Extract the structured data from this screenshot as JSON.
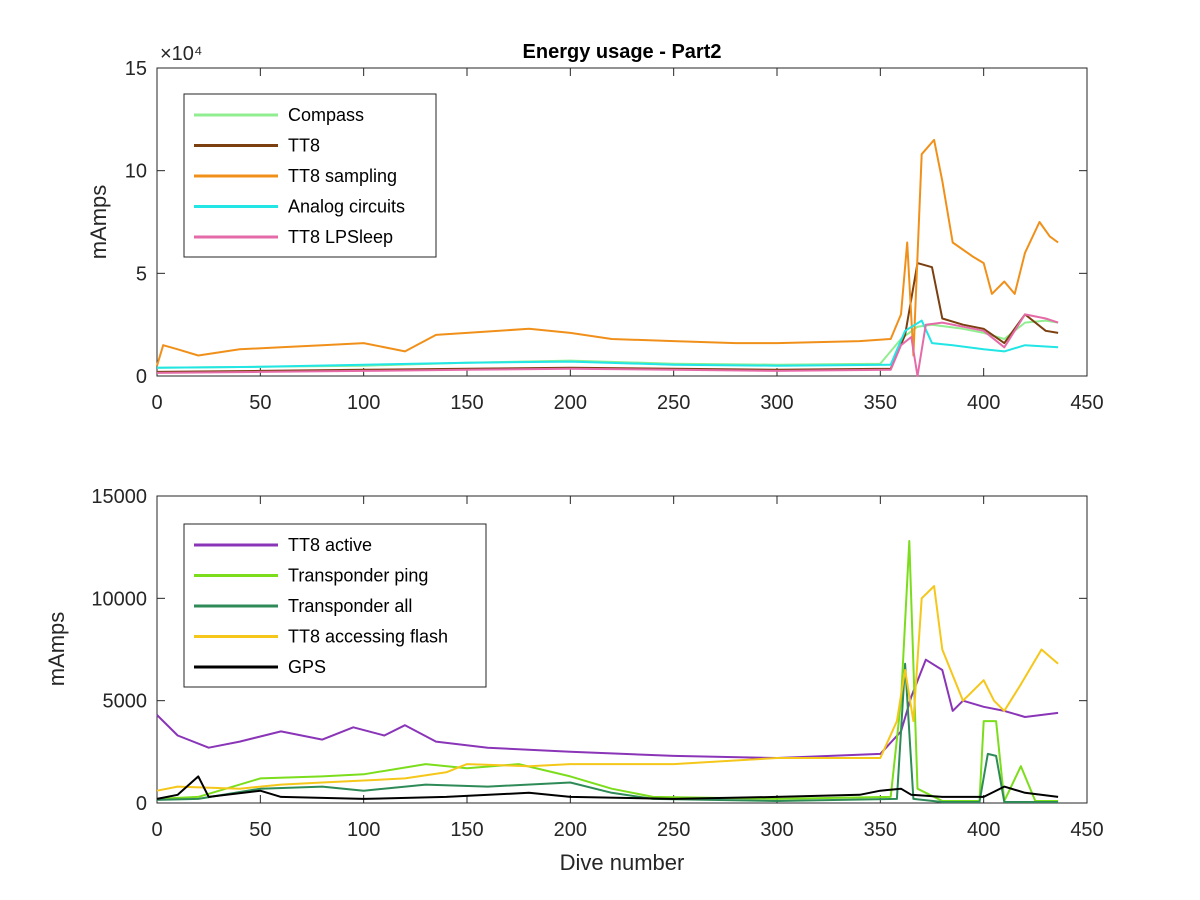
{
  "chart_data": [
    {
      "type": "line",
      "title": "Energy usage - Part2",
      "xlabel": "",
      "ylabel": "mAmps",
      "exponent_label": "×10⁴",
      "xlim": [
        0,
        450
      ],
      "ylim": [
        0,
        15
      ],
      "xticks": [
        "0",
        "50",
        "100",
        "150",
        "200",
        "250",
        "300",
        "350",
        "400",
        "450"
      ],
      "yticks": [
        "0",
        "5",
        "10",
        "15"
      ],
      "legend_position": "top-left",
      "series": [
        {
          "name": "Compass",
          "color": "#90EE90",
          "points": [
            [
              0,
              0.4
            ],
            [
              50,
              0.45
            ],
            [
              100,
              0.5
            ],
            [
              150,
              0.65
            ],
            [
              200,
              0.75
            ],
            [
              250,
              0.6
            ],
            [
              300,
              0.55
            ],
            [
              350,
              0.6
            ],
            [
              360,
              1.8
            ],
            [
              368,
              2.4
            ],
            [
              375,
              2.5
            ],
            [
              390,
              2.3
            ],
            [
              400,
              2.1
            ],
            [
              410,
              1.8
            ],
            [
              420,
              2.6
            ],
            [
              430,
              2.7
            ],
            [
              436,
              2.6
            ]
          ]
        },
        {
          "name": "TT8",
          "color": "#7B3F10",
          "points": [
            [
              0,
              0.2
            ],
            [
              50,
              0.25
            ],
            [
              100,
              0.3
            ],
            [
              150,
              0.35
            ],
            [
              200,
              0.4
            ],
            [
              250,
              0.35
            ],
            [
              300,
              0.3
            ],
            [
              355,
              0.35
            ],
            [
              362,
              2.0
            ],
            [
              368,
              5.5
            ],
            [
              375,
              5.3
            ],
            [
              380,
              2.8
            ],
            [
              390,
              2.5
            ],
            [
              400,
              2.3
            ],
            [
              410,
              1.6
            ],
            [
              420,
              3.0
            ],
            [
              430,
              2.2
            ],
            [
              436,
              2.1
            ]
          ]
        },
        {
          "name": "TT8 sampling",
          "color": "#F0901A",
          "points": [
            [
              0,
              0.5
            ],
            [
              3,
              1.5
            ],
            [
              10,
              1.3
            ],
            [
              20,
              1.0
            ],
            [
              40,
              1.3
            ],
            [
              60,
              1.4
            ],
            [
              80,
              1.5
            ],
            [
              100,
              1.6
            ],
            [
              120,
              1.2
            ],
            [
              135,
              2.0
            ],
            [
              150,
              2.1
            ],
            [
              180,
              2.3
            ],
            [
              200,
              2.1
            ],
            [
              220,
              1.8
            ],
            [
              250,
              1.7
            ],
            [
              280,
              1.6
            ],
            [
              300,
              1.6
            ],
            [
              340,
              1.7
            ],
            [
              355,
              1.8
            ],
            [
              360,
              3.0
            ],
            [
              363,
              6.5
            ],
            [
              366,
              1.0
            ],
            [
              370,
              10.8
            ],
            [
              376,
              11.5
            ],
            [
              380,
              9.5
            ],
            [
              385,
              6.5
            ],
            [
              395,
              5.8
            ],
            [
              400,
              5.5
            ],
            [
              404,
              4.0
            ],
            [
              410,
              4.6
            ],
            [
              415,
              4.0
            ],
            [
              420,
              6.0
            ],
            [
              427,
              7.5
            ],
            [
              432,
              6.8
            ],
            [
              436,
              6.5
            ]
          ]
        },
        {
          "name": "Analog circuits",
          "color": "#22E5E5",
          "points": [
            [
              0,
              0.4
            ],
            [
              50,
              0.45
            ],
            [
              100,
              0.55
            ],
            [
              150,
              0.65
            ],
            [
              200,
              0.7
            ],
            [
              250,
              0.55
            ],
            [
              300,
              0.5
            ],
            [
              355,
              0.55
            ],
            [
              362,
              2.2
            ],
            [
              370,
              2.7
            ],
            [
              375,
              1.6
            ],
            [
              385,
              1.5
            ],
            [
              400,
              1.3
            ],
            [
              410,
              1.2
            ],
            [
              420,
              1.5
            ],
            [
              436,
              1.4
            ]
          ]
        },
        {
          "name": "TT8 LPSleep",
          "color": "#E56AA8",
          "points": [
            [
              0,
              0.15
            ],
            [
              50,
              0.2
            ],
            [
              100,
              0.25
            ],
            [
              150,
              0.3
            ],
            [
              200,
              0.35
            ],
            [
              250,
              0.3
            ],
            [
              300,
              0.25
            ],
            [
              355,
              0.3
            ],
            [
              360,
              1.5
            ],
            [
              365,
              1.9
            ],
            [
              368,
              0.0
            ],
            [
              372,
              2.5
            ],
            [
              380,
              2.6
            ],
            [
              390,
              2.4
            ],
            [
              400,
              2.2
            ],
            [
              410,
              1.4
            ],
            [
              420,
              3.0
            ],
            [
              430,
              2.8
            ],
            [
              436,
              2.6
            ]
          ]
        }
      ]
    },
    {
      "type": "line",
      "title": "",
      "xlabel": "Dive number",
      "ylabel": "mAmps",
      "xlim": [
        0,
        450
      ],
      "ylim": [
        0,
        15000
      ],
      "xticks": [
        "0",
        "50",
        "100",
        "150",
        "200",
        "250",
        "300",
        "350",
        "400",
        "450"
      ],
      "yticks": [
        "0",
        "5000",
        "10000",
        "15000"
      ],
      "legend_position": "top-left",
      "series": [
        {
          "name": "TT8 active",
          "color": "#8A35B8",
          "points": [
            [
              0,
              4300
            ],
            [
              10,
              3300
            ],
            [
              25,
              2700
            ],
            [
              40,
              3000
            ],
            [
              60,
              3500
            ],
            [
              80,
              3100
            ],
            [
              95,
              3700
            ],
            [
              110,
              3300
            ],
            [
              120,
              3800
            ],
            [
              135,
              3000
            ],
            [
              160,
              2700
            ],
            [
              200,
              2500
            ],
            [
              250,
              2300
            ],
            [
              300,
              2200
            ],
            [
              350,
              2400
            ],
            [
              360,
              3500
            ],
            [
              365,
              5200
            ],
            [
              372,
              7000
            ],
            [
              380,
              6500
            ],
            [
              385,
              4500
            ],
            [
              390,
              5000
            ],
            [
              400,
              4700
            ],
            [
              410,
              4500
            ],
            [
              420,
              4200
            ],
            [
              436,
              4400
            ]
          ]
        },
        {
          "name": "Transponder ping",
          "color": "#7CDD1C",
          "points": [
            [
              0,
              200
            ],
            [
              20,
              300
            ],
            [
              50,
              1200
            ],
            [
              80,
              1300
            ],
            [
              100,
              1400
            ],
            [
              130,
              1900
            ],
            [
              150,
              1700
            ],
            [
              175,
              1900
            ],
            [
              200,
              1300
            ],
            [
              220,
              700
            ],
            [
              240,
              300
            ],
            [
              300,
              200
            ],
            [
              355,
              300
            ],
            [
              360,
              5000
            ],
            [
              364,
              12800
            ],
            [
              368,
              700
            ],
            [
              380,
              100
            ],
            [
              398,
              100
            ],
            [
              400,
              4000
            ],
            [
              406,
              4000
            ],
            [
              410,
              100
            ],
            [
              418,
              1800
            ],
            [
              425,
              100
            ],
            [
              436,
              100
            ]
          ]
        },
        {
          "name": "Transponder all",
          "color": "#2E8B57",
          "points": [
            [
              0,
              150
            ],
            [
              20,
              200
            ],
            [
              50,
              700
            ],
            [
              80,
              800
            ],
            [
              100,
              600
            ],
            [
              130,
              900
            ],
            [
              160,
              800
            ],
            [
              200,
              1000
            ],
            [
              220,
              500
            ],
            [
              240,
              200
            ],
            [
              300,
              100
            ],
            [
              358,
              200
            ],
            [
              362,
              6800
            ],
            [
              366,
              200
            ],
            [
              380,
              50
            ],
            [
              398,
              50
            ],
            [
              402,
              2400
            ],
            [
              406,
              2300
            ],
            [
              410,
              50
            ],
            [
              436,
              50
            ]
          ]
        },
        {
          "name": "TT8 accessing flash",
          "color": "#F5C71A",
          "points": [
            [
              0,
              600
            ],
            [
              10,
              800
            ],
            [
              40,
              700
            ],
            [
              60,
              900
            ],
            [
              80,
              1000
            ],
            [
              100,
              1100
            ],
            [
              120,
              1200
            ],
            [
              140,
              1500
            ],
            [
              150,
              1900
            ],
            [
              180,
              1800
            ],
            [
              200,
              1900
            ],
            [
              250,
              1900
            ],
            [
              300,
              2200
            ],
            [
              350,
              2200
            ],
            [
              358,
              4000
            ],
            [
              362,
              6500
            ],
            [
              366,
              4000
            ],
            [
              370,
              10000
            ],
            [
              376,
              10600
            ],
            [
              380,
              7500
            ],
            [
              390,
              5000
            ],
            [
              400,
              6000
            ],
            [
              405,
              5000
            ],
            [
              410,
              4500
            ],
            [
              418,
              5800
            ],
            [
              428,
              7500
            ],
            [
              436,
              6800
            ]
          ]
        },
        {
          "name": "GPS",
          "color": "#000000",
          "points": [
            [
              0,
              200
            ],
            [
              10,
              400
            ],
            [
              20,
              1300
            ],
            [
              25,
              300
            ],
            [
              50,
              600
            ],
            [
              60,
              300
            ],
            [
              100,
              200
            ],
            [
              140,
              300
            ],
            [
              180,
              500
            ],
            [
              200,
              300
            ],
            [
              250,
              200
            ],
            [
              300,
              300
            ],
            [
              340,
              400
            ],
            [
              350,
              600
            ],
            [
              360,
              700
            ],
            [
              365,
              400
            ],
            [
              380,
              300
            ],
            [
              400,
              300
            ],
            [
              410,
              800
            ],
            [
              420,
              500
            ],
            [
              436,
              300
            ]
          ]
        }
      ]
    }
  ]
}
